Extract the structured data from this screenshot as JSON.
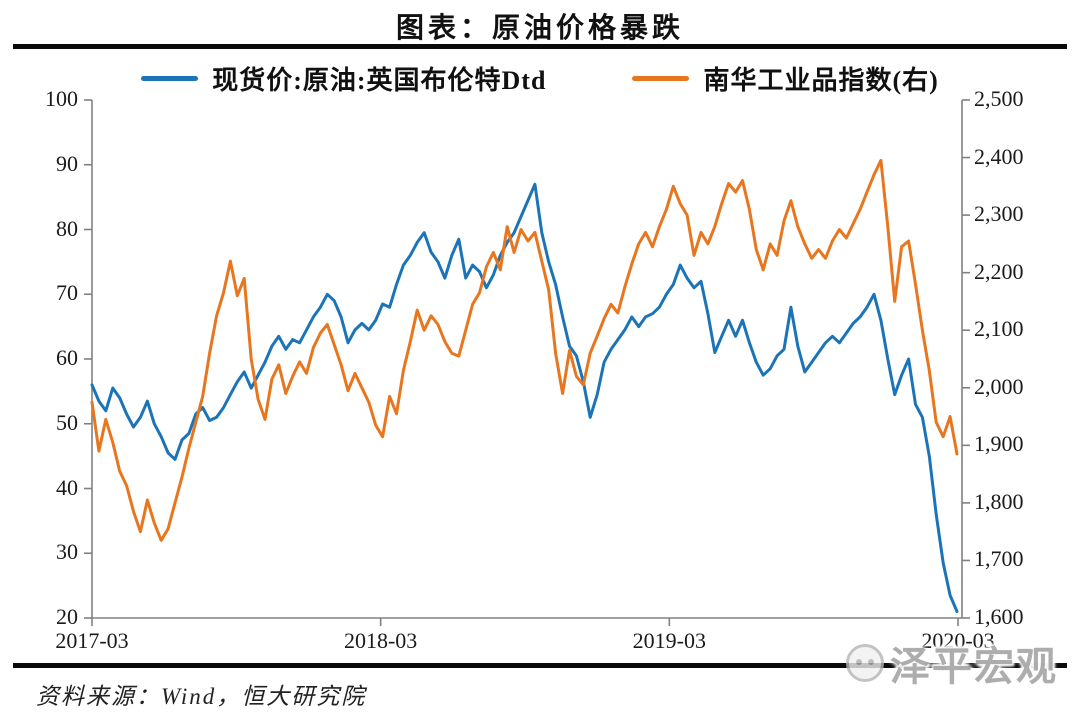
{
  "title": "图表：原油价格暴跌",
  "source_note": "资料来源：Wind，恒大研究院",
  "watermark": "泽平宏观",
  "colors": {
    "brent_blue": "#1C74B8",
    "nanhua_orange": "#E8761F",
    "axis_gray": "#808080"
  },
  "chart_data": {
    "type": "line",
    "title": "图表：原油价格暴跌",
    "grid": "off",
    "legend_position": "top",
    "x_tick_labels": [
      "2017-03",
      "2018-03",
      "2019-03",
      "2020-03"
    ],
    "left_axis": {
      "min": 20,
      "max": 100,
      "tick_labels": [
        "100",
        "90",
        "80",
        "70",
        "60",
        "50",
        "40",
        "30",
        "20"
      ]
    },
    "right_axis": {
      "min": 1600,
      "max": 2500,
      "tick_labels": [
        "2,500",
        "2,400",
        "2,300",
        "2,200",
        "2,100",
        "2,000",
        "1,900",
        "1,800",
        "1,700",
        "1,600"
      ]
    },
    "series": [
      {
        "id": "brent",
        "name": "现货价:原油:英国布伦特Dtd",
        "axis": "left",
        "color": "#1C74B8",
        "values": [
          56,
          53.5,
          52,
          55.5,
          54,
          51.5,
          49.5,
          51,
          53.5,
          50,
          48,
          45.5,
          44.5,
          47.5,
          48.5,
          51.5,
          52.5,
          50.5,
          51,
          52.5,
          54.5,
          56.5,
          58,
          55.5,
          57.5,
          59.5,
          62,
          63.5,
          61.5,
          63,
          62.5,
          64.5,
          66.5,
          68,
          70,
          69,
          66.5,
          62.5,
          64.5,
          65.5,
          64.5,
          66,
          68.5,
          68,
          71.5,
          74.5,
          76,
          78,
          79.5,
          76.5,
          75,
          72.5,
          76,
          78.5,
          72.5,
          74.5,
          73.5,
          71,
          73,
          76,
          78,
          79.5,
          82,
          84.5,
          87,
          79.5,
          75,
          71.5,
          66.5,
          62,
          60.5,
          56.5,
          51,
          54.5,
          59.5,
          61.5,
          63,
          64.5,
          66.5,
          65,
          66.5,
          67,
          68,
          70,
          71.5,
          74.5,
          72.5,
          71,
          72,
          67,
          61,
          63.5,
          66,
          63.5,
          66,
          62.5,
          59.5,
          57.5,
          58.5,
          60.5,
          61.5,
          68,
          62,
          58,
          59.5,
          61,
          62.5,
          63.5,
          62.5,
          64,
          65.5,
          66.5,
          68,
          70,
          66,
          60,
          54.5,
          57.5,
          60,
          53,
          51,
          45,
          36,
          28.5,
          23.5,
          21
        ]
      },
      {
        "id": "nanhua",
        "name": "南华工业品指数(右)",
        "axis": "right",
        "color": "#E8761F",
        "values": [
          1975,
          1890,
          1945,
          1905,
          1855,
          1830,
          1785,
          1750,
          1805,
          1765,
          1735,
          1755,
          1800,
          1845,
          1895,
          1940,
          1985,
          2060,
          2125,
          2165,
          2220,
          2160,
          2190,
          2050,
          1980,
          1945,
          2015,
          2040,
          1990,
          2020,
          2045,
          2025,
          2070,
          2095,
          2110,
          2075,
          2040,
          1995,
          2025,
          2000,
          1975,
          1935,
          1915,
          1985,
          1955,
          2030,
          2080,
          2135,
          2100,
          2125,
          2110,
          2080,
          2060,
          2055,
          2100,
          2145,
          2165,
          2210,
          2235,
          2205,
          2280,
          2235,
          2275,
          2255,
          2270,
          2220,
          2170,
          2060,
          1990,
          2065,
          2020,
          2005,
          2060,
          2090,
          2120,
          2145,
          2130,
          2175,
          2215,
          2250,
          2270,
          2245,
          2280,
          2310,
          2350,
          2320,
          2300,
          2230,
          2270,
          2250,
          2280,
          2320,
          2355,
          2340,
          2360,
          2310,
          2240,
          2205,
          2250,
          2230,
          2290,
          2325,
          2280,
          2250,
          2225,
          2240,
          2225,
          2255,
          2275,
          2260,
          2285,
          2310,
          2340,
          2370,
          2395,
          2280,
          2150,
          2245,
          2255,
          2180,
          2100,
          2030,
          1940,
          1915,
          1950,
          1885
        ]
      }
    ]
  }
}
